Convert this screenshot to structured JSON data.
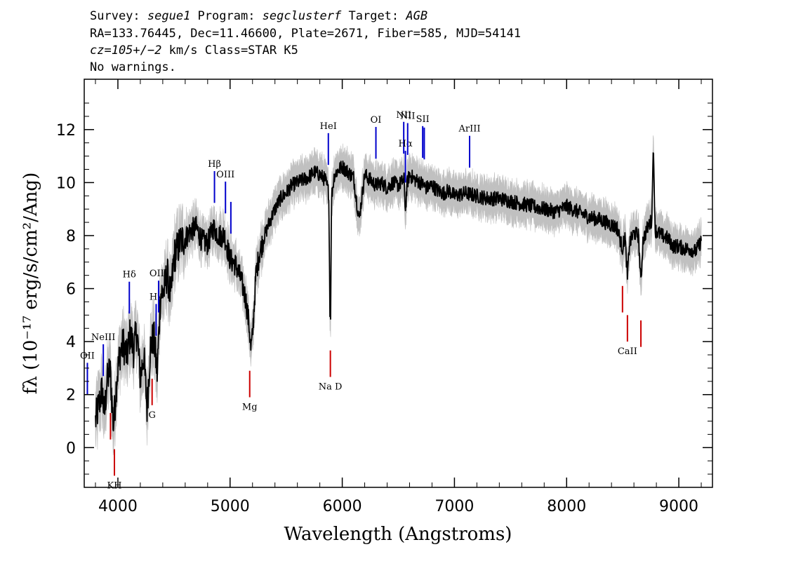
{
  "header": {
    "line1": {
      "survey_label": "Survey: ",
      "survey": "segue1",
      "program_label": " Program: ",
      "program": "segclusterf",
      "target_label": " Target: ",
      "target": "AGB"
    },
    "line2": "RA=133.76445, Dec=11.46600, Plate=2671, Fiber=585, MJD=54141",
    "line3": {
      "cz": "cz=105+/−2",
      "rest": " km/s Class=STAR K5"
    },
    "line4": "No warnings."
  },
  "colors": {
    "flux": "#000000",
    "error": "#c0c0c0",
    "emission": "#0000cc",
    "absorption": "#cc0000"
  },
  "chart_data": {
    "type": "line",
    "xlabel": "Wavelength (Angstroms)",
    "ylabel": "fλ (10⁻¹⁷ erg/s/cm²/Ang)",
    "xlim": [
      3700,
      9300
    ],
    "ylim": [
      -1.5,
      13.9
    ],
    "x_ticks": [
      4000,
      5000,
      6000,
      7000,
      8000,
      9000
    ],
    "y_ticks": [
      0,
      2,
      4,
      6,
      8,
      10,
      12
    ],
    "series": [
      {
        "name": "",
        "x": [
          3800,
          3830,
          3860,
          3880,
          3900,
          3930,
          3960,
          3990,
          4020,
          4050,
          4080,
          4110,
          4140,
          4170,
          4200,
          4230,
          4260,
          4290,
          4320,
          4350,
          4380,
          4410,
          4440,
          4470,
          4500,
          4530,
          4560,
          4600,
          4650,
          4700,
          4750,
          4800,
          4850,
          4900,
          4950,
          5000,
          5050,
          5100,
          5140,
          5170,
          5185,
          5200,
          5230,
          5260,
          5300,
          5350,
          5400,
          5450,
          5500,
          5550,
          5600,
          5650,
          5700,
          5750,
          5800,
          5850,
          5880,
          5890,
          5896,
          5905,
          5930,
          5970,
          6000,
          6050,
          6100,
          6150,
          6200,
          6250,
          6300,
          6350,
          6400,
          6450,
          6500,
          6550,
          6563,
          6580,
          6600,
          6650,
          6700,
          6750,
          6800,
          6850,
          6900,
          6950,
          7000,
          7100,
          7200,
          7300,
          7400,
          7500,
          7600,
          7700,
          7800,
          7900,
          8000,
          8100,
          8200,
          8300,
          8400,
          8450,
          8498,
          8520,
          8542,
          8560,
          8600,
          8640,
          8662,
          8680,
          8720,
          8760,
          8771,
          8790,
          8850,
          8900,
          8950,
          9000,
          9050,
          9100,
          9150,
          9200
        ],
        "y": [
          1.0,
          1.6,
          2.2,
          1.2,
          2.4,
          3.0,
          0.8,
          2.6,
          3.6,
          3.9,
          3.4,
          4.3,
          3.7,
          4.4,
          2.6,
          3.5,
          1.5,
          3.8,
          4.2,
          2.8,
          5.8,
          5.9,
          6.6,
          5.6,
          7.2,
          7.5,
          7.8,
          7.9,
          8.2,
          8.3,
          7.8,
          7.7,
          8.3,
          8.0,
          8.0,
          7.1,
          6.9,
          6.3,
          5.6,
          4.6,
          3.7,
          4.2,
          6.5,
          7.3,
          7.9,
          8.5,
          9.0,
          9.4,
          9.6,
          9.9,
          10.0,
          10.1,
          10.2,
          10.4,
          10.3,
          10.1,
          9.6,
          5.2,
          5.0,
          9.5,
          10.3,
          10.5,
          10.6,
          10.4,
          10.2,
          8.6,
          10.3,
          10.1,
          9.9,
          10.0,
          9.8,
          10.0,
          9.9,
          10.1,
          9.0,
          10.0,
          10.3,
          10.1,
          10.0,
          9.8,
          9.9,
          9.7,
          9.6,
          9.7,
          9.5,
          9.6,
          9.5,
          9.4,
          9.4,
          9.3,
          9.2,
          9.1,
          9.0,
          8.9,
          9.1,
          8.9,
          8.7,
          8.6,
          8.4,
          8.3,
          7.5,
          8.0,
          6.4,
          7.7,
          8.1,
          8.0,
          6.2,
          7.8,
          8.3,
          8.6,
          11.4,
          8.2,
          8.0,
          7.9,
          7.6,
          7.6,
          7.5,
          7.5,
          7.4,
          7.8
        ]
      }
    ],
    "emission_lines": [
      {
        "label": "OII",
        "x": 3728
      },
      {
        "label": "NeIII",
        "x": 3870
      },
      {
        "label": "Hδ",
        "x": 4102
      },
      {
        "label": "Hγ",
        "x": 4341
      },
      {
        "label": "OIII",
        "x": 4363
      },
      {
        "label": "Hβ",
        "x": 4861
      },
      {
        "label": "OIII",
        "x": 4959
      },
      {
        "label": "",
        "x": 5007
      },
      {
        "label": "HeI",
        "x": 5876
      },
      {
        "label": "OI",
        "x": 6300
      },
      {
        "label": "NII",
        "x": 6548
      },
      {
        "label": "Hα",
        "x": 6563
      },
      {
        "label": "NII",
        "x": 6583
      },
      {
        "label": "SII",
        "x": 6717
      },
      {
        "label": "",
        "x": 6731
      },
      {
        "label": "ArIII",
        "x": 7135
      }
    ],
    "absorption_lines": [
      {
        "label": "",
        "x": 3934
      },
      {
        "label": "KH",
        "x": 3969
      },
      {
        "label": "G",
        "x": 4305
      },
      {
        "label": "Mg",
        "x": 5175
      },
      {
        "label": "Na D",
        "x": 5894
      },
      {
        "label": "",
        "x": 8498
      },
      {
        "label": "CaII",
        "x": 8542
      },
      {
        "label": "",
        "x": 8662
      }
    ]
  }
}
